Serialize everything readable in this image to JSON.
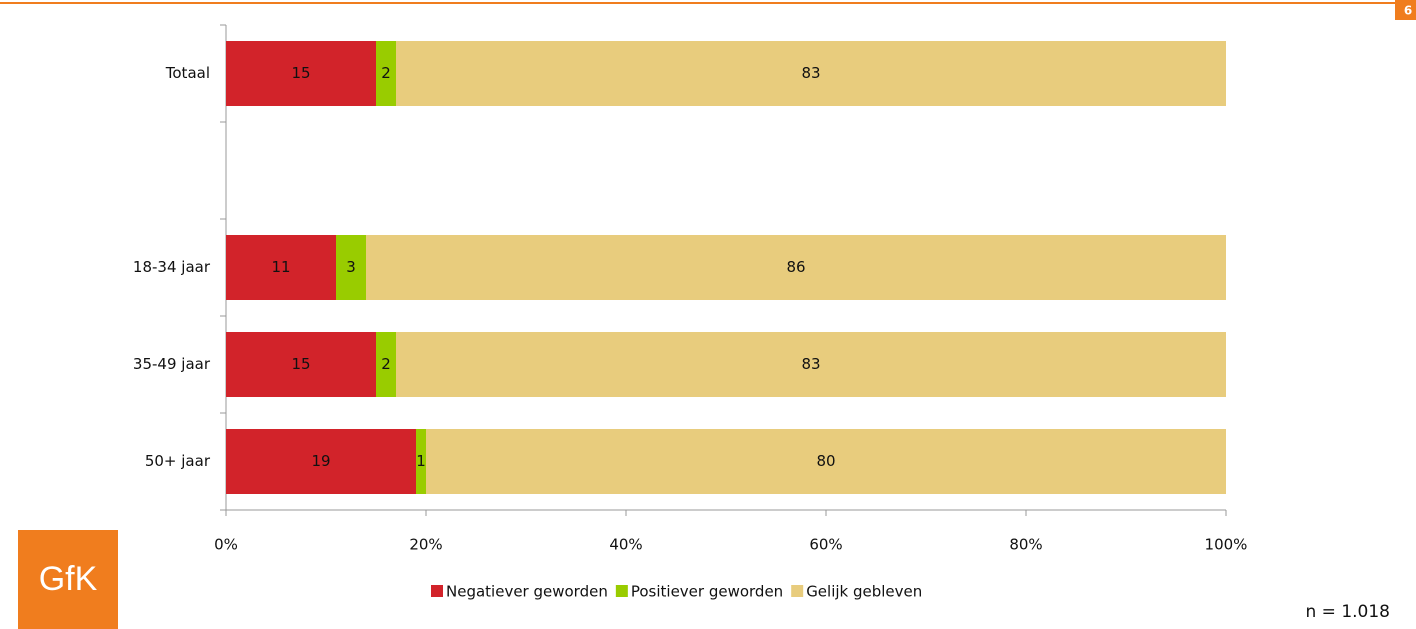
{
  "chart_data": {
    "type": "stacked-barh",
    "categories": [
      "Totaal",
      null,
      "18-34 jaar",
      "35-49 jaar",
      "50+ jaar"
    ],
    "series": [
      {
        "name": "Negatiever geworden",
        "color": "#d2232a",
        "values": [
          15,
          null,
          11,
          15,
          19
        ]
      },
      {
        "name": "Positiever geworden",
        "color": "#99cc00",
        "values": [
          2,
          null,
          3,
          2,
          1
        ]
      },
      {
        "name": "Gelijk gebleven",
        "color": "#e8cc7d",
        "values": [
          83,
          null,
          86,
          83,
          80
        ]
      }
    ],
    "xlim": [
      0,
      100
    ],
    "xticks": [
      {
        "value": 0,
        "label": "0%"
      },
      {
        "value": 20,
        "label": "20%"
      },
      {
        "value": 40,
        "label": "40%"
      },
      {
        "value": 60,
        "label": "60%"
      },
      {
        "value": 80,
        "label": "80%"
      },
      {
        "value": 100,
        "label": "100%"
      }
    ],
    "legend": "bottom",
    "note": "n = 1.018",
    "logo": "GfK",
    "page_number": "6"
  }
}
